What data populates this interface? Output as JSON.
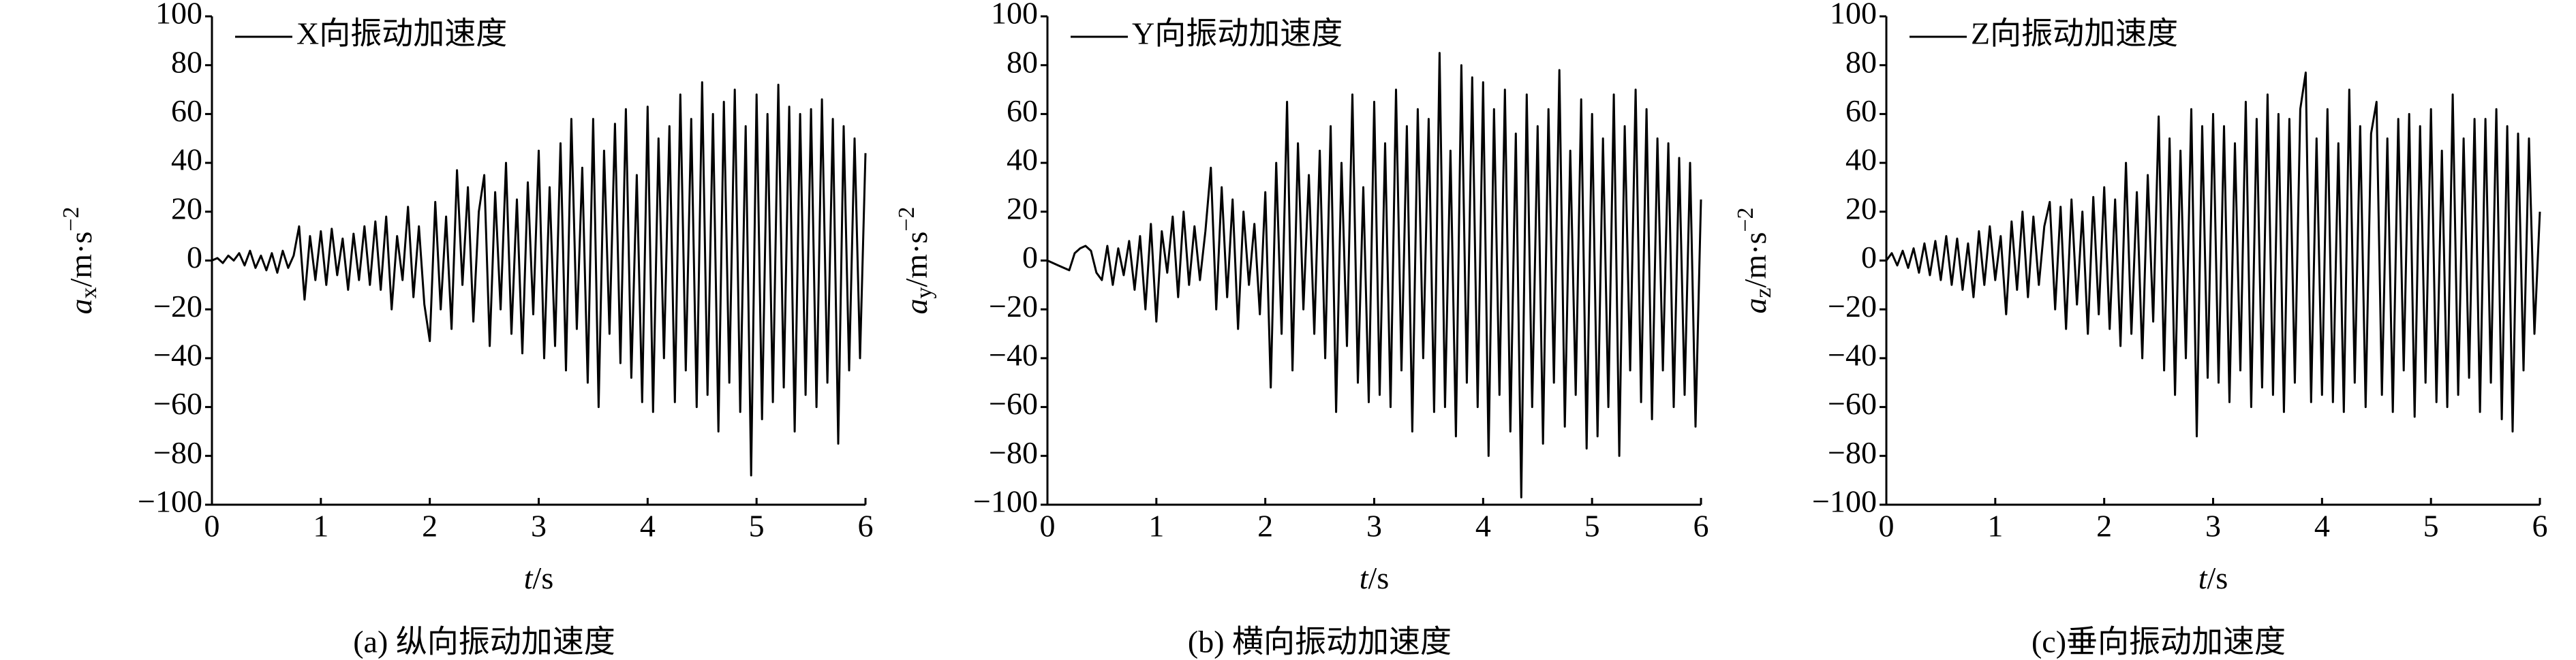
{
  "chart_data": [
    {
      "type": "line",
      "caption": "(a) 纵向振动加速度",
      "xlabel": [
        "t",
        "/s"
      ],
      "ylabel": [
        "a",
        "x",
        "/m·s",
        "−2"
      ],
      "x": [
        0,
        0.05,
        0.1,
        0.15,
        0.2,
        0.25,
        0.3,
        0.35,
        0.4,
        0.45,
        0.5,
        0.55,
        0.6,
        0.65,
        0.7,
        0.75,
        0.8,
        0.85,
        0.9,
        0.95,
        1,
        1.05,
        1.1,
        1.15,
        1.2,
        1.25,
        1.3,
        1.35,
        1.4,
        1.45,
        1.5,
        1.55,
        1.6,
        1.65,
        1.7,
        1.75,
        1.8,
        1.85,
        1.9,
        1.95,
        2,
        2.05,
        2.1,
        2.15,
        2.2,
        2.25,
        2.3,
        2.35,
        2.4,
        2.45,
        2.5,
        2.55,
        2.6,
        2.65,
        2.7,
        2.75,
        2.8,
        2.85,
        2.9,
        2.95,
        3,
        3.05,
        3.1,
        3.15,
        3.2,
        3.25,
        3.3,
        3.35,
        3.4,
        3.45,
        3.5,
        3.55,
        3.6,
        3.65,
        3.7,
        3.75,
        3.8,
        3.85,
        3.9,
        3.95,
        4,
        4.05,
        4.1,
        4.15,
        4.2,
        4.25,
        4.3,
        4.35,
        4.4,
        4.45,
        4.5,
        4.55,
        4.6,
        4.65,
        4.7,
        4.75,
        4.8,
        4.85,
        4.9,
        4.95,
        5,
        5.05,
        5.1,
        5.15,
        5.2,
        5.25,
        5.3,
        5.35,
        5.4,
        5.45,
        5.5,
        5.55,
        5.6,
        5.65,
        5.7,
        5.75,
        5.8,
        5.85,
        5.9,
        5.95,
        6
      ],
      "series": [
        {
          "name": "X向振动加速度",
          "color": "#000000",
          "values": [
            0,
            1,
            -1,
            2,
            0,
            3,
            -2,
            4,
            -3,
            2,
            -4,
            3,
            -5,
            4,
            -3,
            2,
            14,
            -16,
            10,
            -8,
            12,
            -10,
            13,
            -6,
            9,
            -12,
            11,
            -8,
            14,
            -10,
            16,
            -12,
            18,
            -20,
            10,
            -8,
            22,
            -15,
            14,
            -18,
            -33,
            24,
            -20,
            18,
            -28,
            37,
            -10,
            30,
            -25,
            20,
            35,
            -35,
            28,
            -20,
            40,
            -30,
            25,
            -38,
            32,
            -22,
            45,
            -40,
            30,
            -35,
            48,
            -45,
            58,
            -28,
            38,
            -50,
            58,
            -60,
            45,
            -30,
            56,
            -42,
            62,
            -48,
            35,
            -58,
            63,
            -62,
            50,
            -40,
            55,
            -58,
            68,
            -45,
            58,
            -60,
            73,
            -55,
            60,
            -70,
            65,
            -50,
            70,
            -62,
            55,
            -88,
            68,
            -65,
            60,
            -58,
            72,
            -52,
            63,
            -70,
            60,
            -55,
            62,
            -60,
            66,
            -50,
            58,
            -75,
            55,
            -45,
            50,
            -40,
            44
          ]
        }
      ],
      "xlim": [
        0,
        6
      ],
      "xticks": [
        0,
        1,
        2,
        3,
        4,
        5,
        6
      ],
      "ylim": [
        -100,
        100
      ],
      "yticks": [
        {
          "value": -100,
          "label": "−100"
        },
        {
          "value": -80,
          "label": "−80"
        },
        {
          "value": -60,
          "label": "−60"
        },
        {
          "value": -40,
          "label": "−40"
        },
        {
          "value": -20,
          "label": "−20"
        },
        0,
        20,
        40,
        60,
        80,
        100
      ]
    },
    {
      "type": "line",
      "caption": "(b) 横向振动加速度",
      "xlabel": [
        "t",
        "/s"
      ],
      "ylabel": [
        "a",
        "y",
        "/m·s",
        "−2"
      ],
      "x": [
        0,
        0.05,
        0.1,
        0.15,
        0.2,
        0.25,
        0.3,
        0.35,
        0.4,
        0.45,
        0.5,
        0.55,
        0.6,
        0.65,
        0.7,
        0.75,
        0.8,
        0.85,
        0.9,
        0.95,
        1,
        1.05,
        1.1,
        1.15,
        1.2,
        1.25,
        1.3,
        1.35,
        1.4,
        1.45,
        1.5,
        1.55,
        1.6,
        1.65,
        1.7,
        1.75,
        1.8,
        1.85,
        1.9,
        1.95,
        2,
        2.05,
        2.1,
        2.15,
        2.2,
        2.25,
        2.3,
        2.35,
        2.4,
        2.45,
        2.5,
        2.55,
        2.6,
        2.65,
        2.7,
        2.75,
        2.8,
        2.85,
        2.9,
        2.95,
        3,
        3.05,
        3.1,
        3.15,
        3.2,
        3.25,
        3.3,
        3.35,
        3.4,
        3.45,
        3.5,
        3.55,
        3.6,
        3.65,
        3.7,
        3.75,
        3.8,
        3.85,
        3.9,
        3.95,
        4,
        4.05,
        4.1,
        4.15,
        4.2,
        4.25,
        4.3,
        4.35,
        4.4,
        4.45,
        4.5,
        4.55,
        4.6,
        4.65,
        4.7,
        4.75,
        4.8,
        4.85,
        4.9,
        4.95,
        5,
        5.05,
        5.1,
        5.15,
        5.2,
        5.25,
        5.3,
        5.35,
        5.4,
        5.45,
        5.5,
        5.55,
        5.6,
        5.65,
        5.7,
        5.75,
        5.8,
        5.85,
        5.9,
        5.95,
        6
      ],
      "series": [
        {
          "name": "Y向振动加速度",
          "color": "#000000",
          "values": [
            0,
            -1,
            -2,
            -3,
            -4,
            3,
            5,
            6,
            4,
            -5,
            -8,
            6,
            -10,
            5,
            -6,
            8,
            -12,
            10,
            -20,
            15,
            -25,
            12,
            -5,
            18,
            -15,
            20,
            -10,
            14,
            -8,
            12,
            38,
            -20,
            30,
            -15,
            25,
            -28,
            20,
            -10,
            15,
            -22,
            28,
            -52,
            40,
            -30,
            65,
            -45,
            48,
            -20,
            35,
            -30,
            45,
            -40,
            55,
            -62,
            40,
            -35,
            68,
            -50,
            30,
            -58,
            65,
            -55,
            48,
            -60,
            70,
            -45,
            55,
            -70,
            62,
            -40,
            58,
            -62,
            85,
            -60,
            45,
            -72,
            80,
            -50,
            75,
            -60,
            73,
            -80,
            62,
            -55,
            70,
            -70,
            52,
            -97,
            68,
            -60,
            55,
            -75,
            62,
            -50,
            78,
            -68,
            45,
            -55,
            66,
            -77,
            60,
            -72,
            50,
            -60,
            68,
            -80,
            55,
            -45,
            70,
            -58,
            62,
            -65,
            50,
            -45,
            48,
            -60,
            42,
            -55,
            40,
            -68,
            25
          ]
        }
      ],
      "xlim": [
        0,
        6
      ],
      "xticks": [
        0,
        1,
        2,
        3,
        4,
        5,
        6
      ],
      "ylim": [
        -100,
        100
      ],
      "yticks": [
        {
          "value": -100,
          "label": "−100"
        },
        {
          "value": -80,
          "label": "−80"
        },
        {
          "value": -60,
          "label": "−60"
        },
        {
          "value": -40,
          "label": "−40"
        },
        {
          "value": -20,
          "label": "−20"
        },
        0,
        20,
        40,
        60,
        80,
        100
      ]
    },
    {
      "type": "line",
      "caption": "(c)垂向振动加速度",
      "xlabel": [
        "t",
        "/s"
      ],
      "ylabel": [
        "a",
        "z",
        "/m·s",
        "−2"
      ],
      "x": [
        0,
        0.05,
        0.1,
        0.15,
        0.2,
        0.25,
        0.3,
        0.35,
        0.4,
        0.45,
        0.5,
        0.55,
        0.6,
        0.65,
        0.7,
        0.75,
        0.8,
        0.85,
        0.9,
        0.95,
        1,
        1.05,
        1.1,
        1.15,
        1.2,
        1.25,
        1.3,
        1.35,
        1.4,
        1.45,
        1.5,
        1.55,
        1.6,
        1.65,
        1.7,
        1.75,
        1.8,
        1.85,
        1.9,
        1.95,
        2,
        2.05,
        2.1,
        2.15,
        2.2,
        2.25,
        2.3,
        2.35,
        2.4,
        2.45,
        2.5,
        2.55,
        2.6,
        2.65,
        2.7,
        2.75,
        2.8,
        2.85,
        2.9,
        2.95,
        3,
        3.05,
        3.1,
        3.15,
        3.2,
        3.25,
        3.3,
        3.35,
        3.4,
        3.45,
        3.5,
        3.55,
        3.6,
        3.65,
        3.7,
        3.75,
        3.8,
        3.85,
        3.9,
        3.95,
        4,
        4.05,
        4.1,
        4.15,
        4.2,
        4.25,
        4.3,
        4.35,
        4.4,
        4.45,
        4.5,
        4.55,
        4.6,
        4.65,
        4.7,
        4.75,
        4.8,
        4.85,
        4.9,
        4.95,
        5,
        5.05,
        5.1,
        5.15,
        5.2,
        5.25,
        5.3,
        5.35,
        5.4,
        5.45,
        5.5,
        5.55,
        5.6,
        5.65,
        5.7,
        5.75,
        5.8,
        5.85,
        5.9,
        5.95,
        6
      ],
      "series": [
        {
          "name": "Z向振动加速度",
          "color": "#000000",
          "values": [
            0,
            3,
            -2,
            4,
            -3,
            5,
            -5,
            7,
            -6,
            8,
            -8,
            10,
            -10,
            9,
            -12,
            7,
            -15,
            12,
            -10,
            14,
            -8,
            10,
            -22,
            16,
            -12,
            20,
            -15,
            18,
            -10,
            14,
            24,
            -20,
            22,
            -28,
            25,
            -18,
            20,
            -30,
            26,
            -22,
            30,
            -28,
            25,
            -35,
            40,
            -30,
            28,
            -40,
            35,
            -25,
            59,
            -45,
            50,
            -55,
            45,
            -40,
            62,
            -72,
            55,
            -48,
            60,
            -50,
            55,
            -58,
            48,
            -45,
            65,
            -60,
            58,
            -52,
            68,
            -55,
            60,
            -62,
            58,
            -50,
            62,
            77,
            -58,
            50,
            -55,
            62,
            -58,
            48,
            -62,
            70,
            -50,
            55,
            -60,
            52,
            65,
            -55,
            50,
            -62,
            58,
            -45,
            60,
            -64,
            55,
            -50,
            62,
            -58,
            45,
            -60,
            68,
            -55,
            50,
            -48,
            58,
            -62,
            58,
            -50,
            62,
            -65,
            55,
            -70,
            52,
            -45,
            50,
            -30,
            20
          ]
        }
      ],
      "xlim": [
        0,
        6
      ],
      "xticks": [
        0,
        1,
        2,
        3,
        4,
        5,
        6
      ],
      "ylim": [
        -100,
        100
      ],
      "yticks": [
        {
          "value": -100,
          "label": "−100"
        },
        {
          "value": -80,
          "label": "−80"
        },
        {
          "value": -60,
          "label": "−60"
        },
        {
          "value": -40,
          "label": "−40"
        },
        {
          "value": -20,
          "label": "−20"
        },
        0,
        20,
        40,
        60,
        80,
        100
      ]
    }
  ]
}
